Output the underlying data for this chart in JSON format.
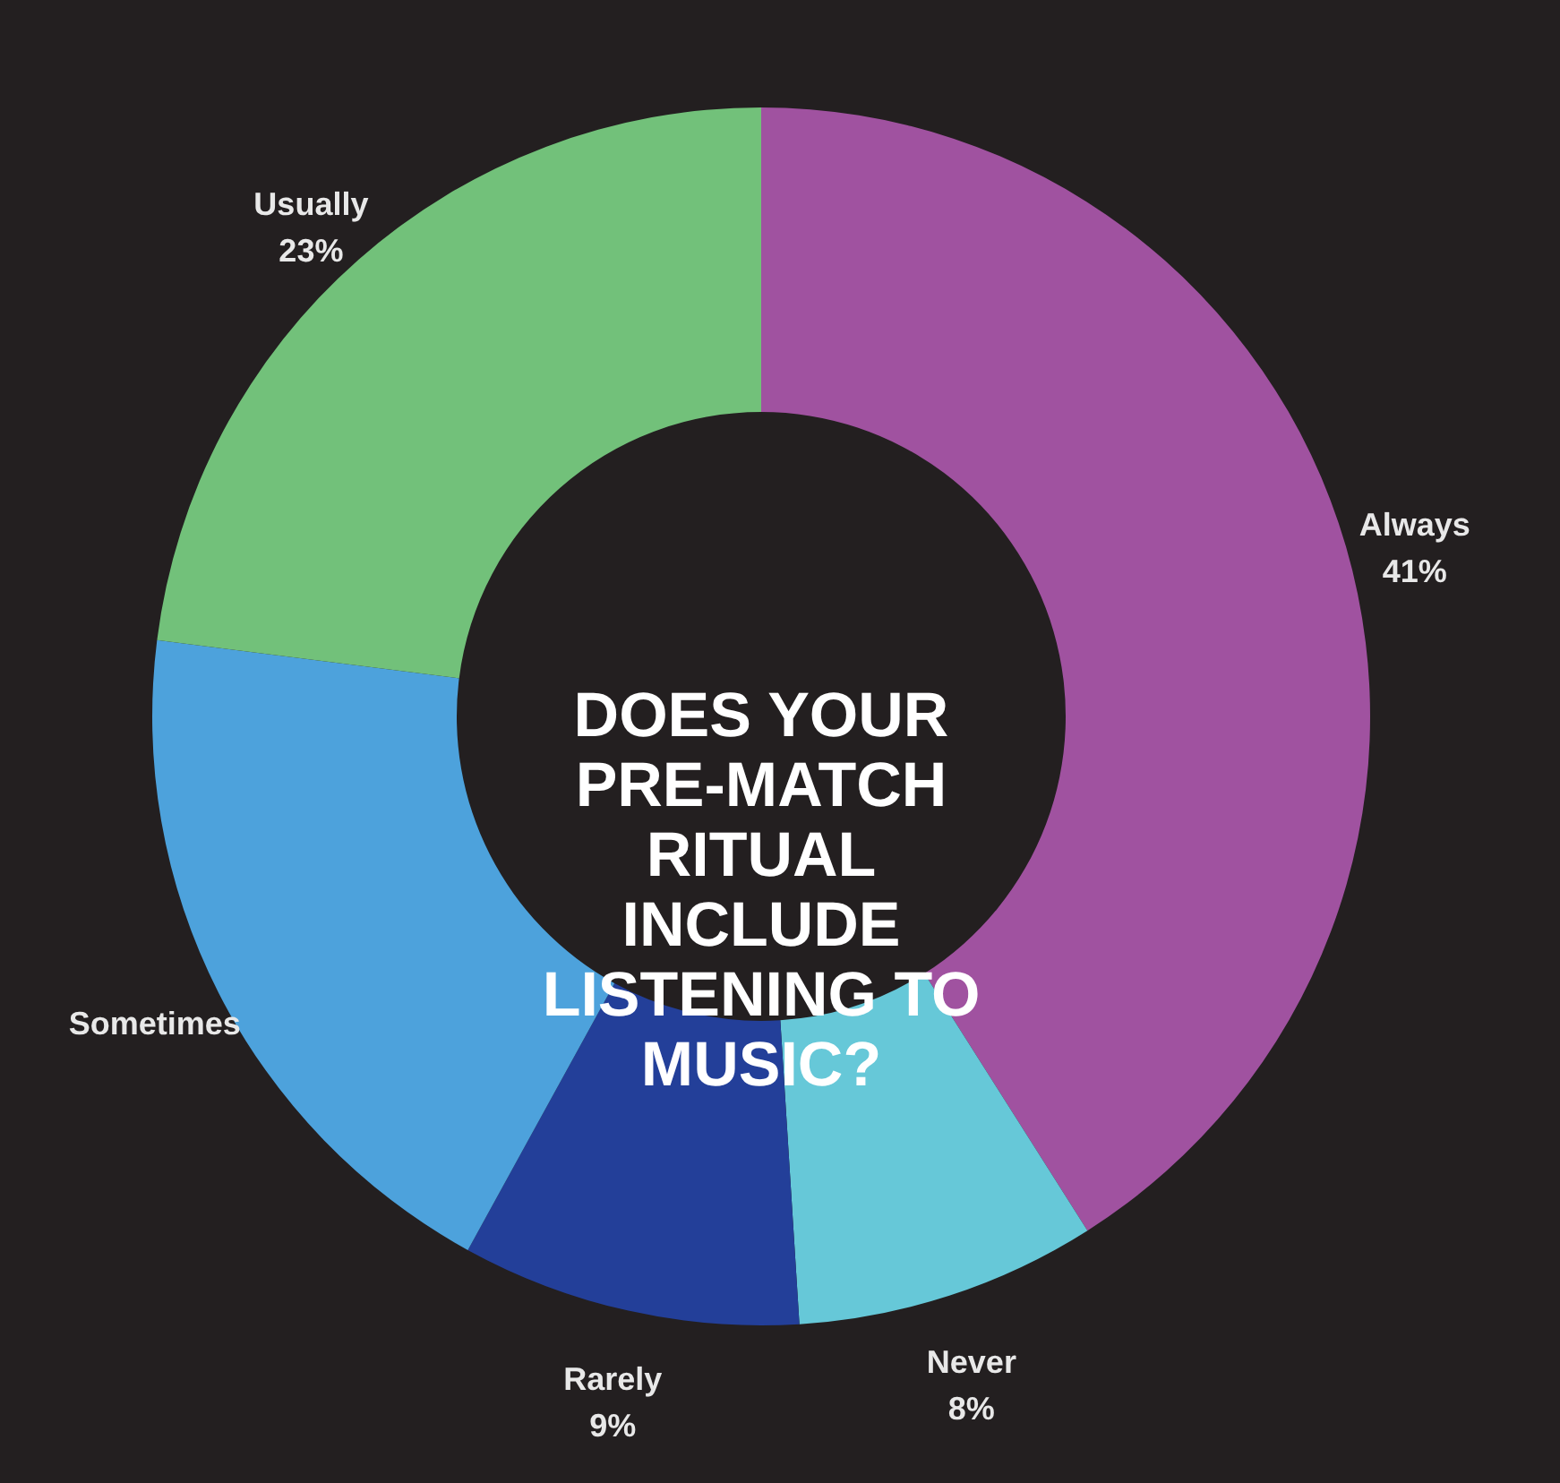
{
  "chart_data": {
    "type": "donut",
    "title": "DOES YOUR PRE-MATCH RITUAL INCLUDE LISTENING TO MUSIC?",
    "categories": [
      "Always",
      "Never",
      "Rarely",
      "Sometimes",
      "Usually"
    ],
    "values": [
      41,
      8,
      9,
      19,
      23
    ],
    "colors": [
      "#a052a0",
      "#66c8d8",
      "#233f99",
      "#4da2dc",
      "#72c17a"
    ],
    "value_labels": [
      "41%",
      "8%",
      "9%",
      null,
      "23%"
    ]
  }
}
